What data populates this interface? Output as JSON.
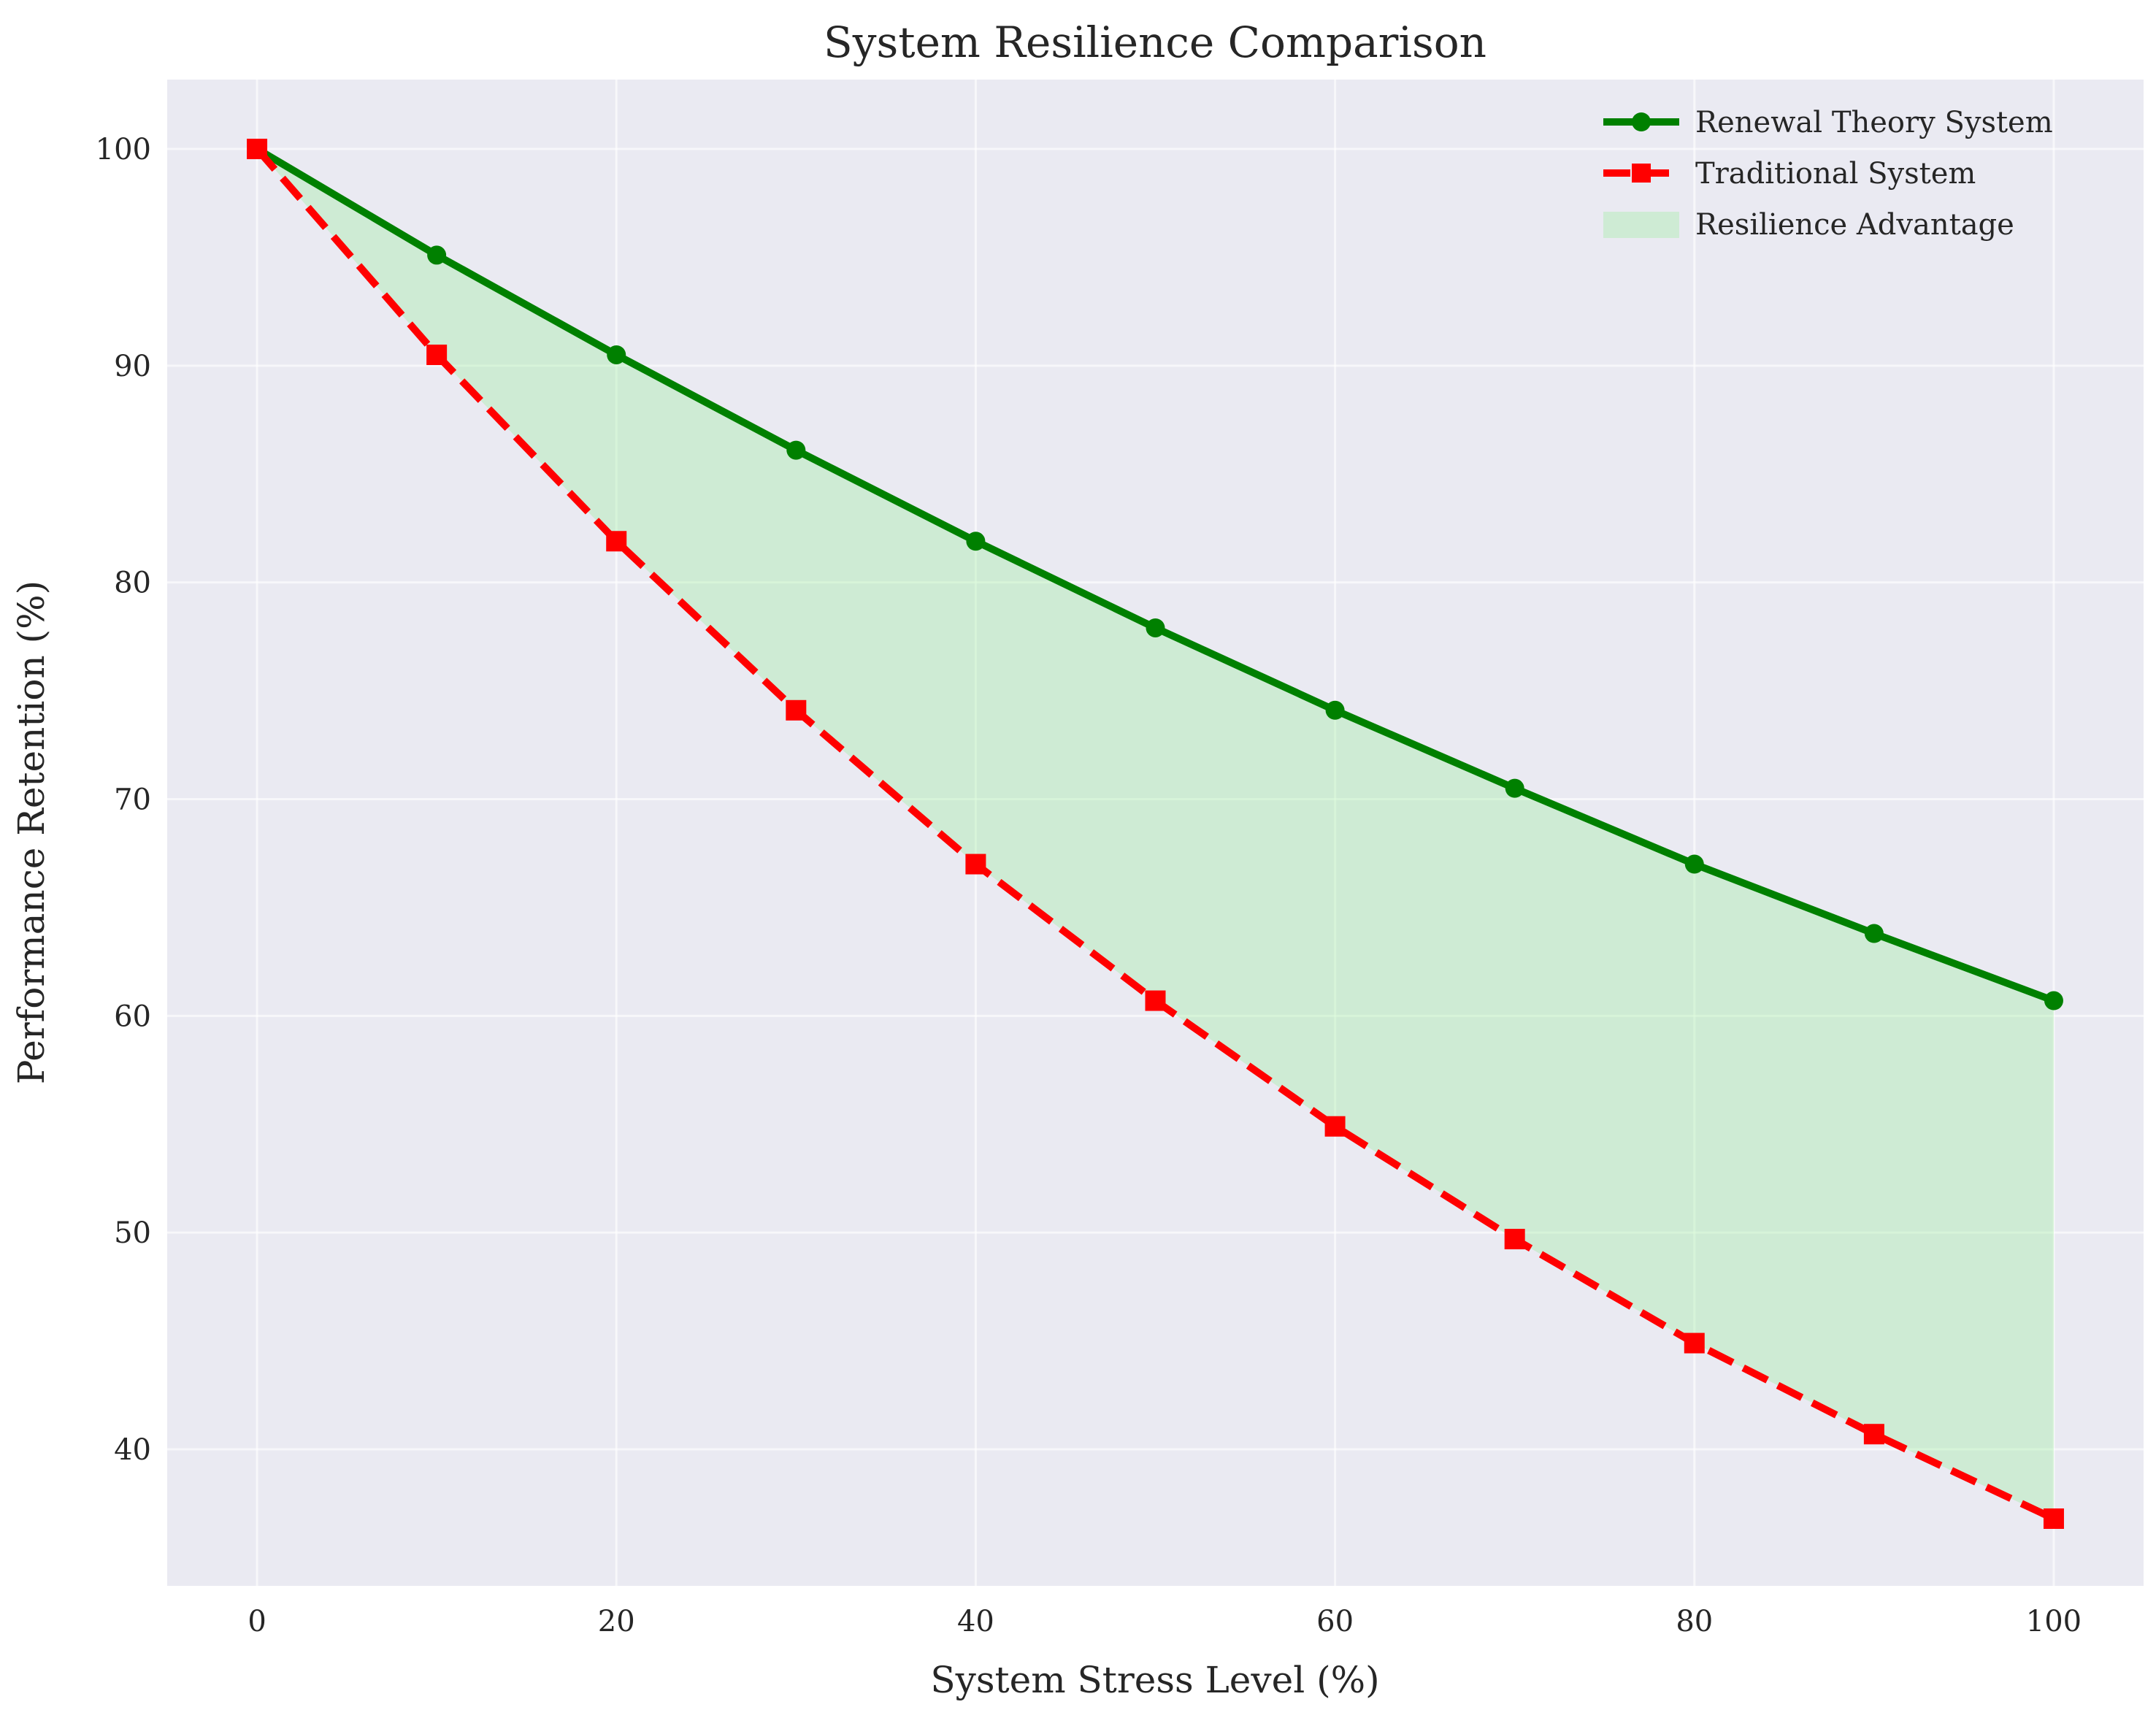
{
  "chart_data": {
    "type": "line",
    "title": "System Resilience Comparison",
    "xlabel": "System Stress Level (%)",
    "ylabel": "Performance Retention (%)",
    "xlim": [
      -5,
      105
    ],
    "ylim": [
      33.7,
      103.2
    ],
    "xticks": [
      0,
      20,
      40,
      60,
      80,
      100
    ],
    "yticks": [
      40,
      50,
      60,
      70,
      80,
      90,
      100
    ],
    "grid": true,
    "legend_position": "top-right",
    "x": [
      0,
      10,
      20,
      30,
      40,
      50,
      60,
      70,
      80,
      90,
      100
    ],
    "series": [
      {
        "name": "Renewal Theory System",
        "values": [
          100,
          95.1,
          90.5,
          86.1,
          81.9,
          77.9,
          74.1,
          70.5,
          67.0,
          63.8,
          60.7
        ],
        "color": "#008000",
        "style": "solid",
        "marker": "circle"
      },
      {
        "name": "Traditional System",
        "values": [
          100,
          90.5,
          81.9,
          74.1,
          67.0,
          60.7,
          54.9,
          49.7,
          44.9,
          40.7,
          36.8
        ],
        "color": "#ff0000",
        "style": "dashed",
        "marker": "square"
      }
    ],
    "fill": {
      "name": "Resilience Advantage",
      "between": [
        "Renewal Theory System",
        "Traditional System"
      ],
      "color": "#90ee90"
    },
    "background_color": "#eaeaf2"
  }
}
